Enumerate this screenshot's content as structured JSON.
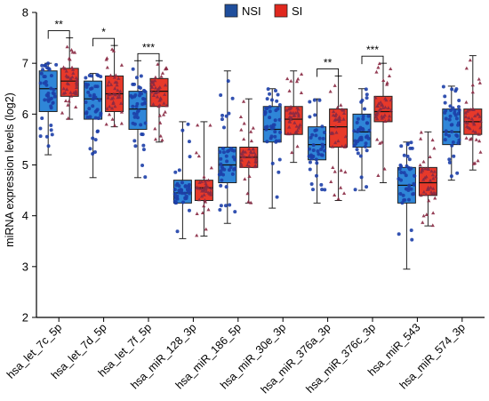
{
  "chart_data": {
    "type": "box",
    "ylabel": "miRNA expression levels (log2)",
    "ylim": [
      2,
      8
    ],
    "yticks": [
      2,
      3,
      4,
      5,
      6,
      7,
      8
    ],
    "legend": {
      "position": "top-center"
    },
    "series": [
      {
        "name": "NSI",
        "color": "#1f4e9c",
        "box_color": "#2f86d8",
        "point_color": "#1d3fa8"
      },
      {
        "name": "SI",
        "color": "#e0281e",
        "box_color": "#e7392a",
        "point_color": "#8a2a44"
      }
    ],
    "categories": [
      "hsa_let_7c_5p",
      "hsa_let_7d_5p",
      "hsa_let_7f_5p",
      "hsa_miR_128_3p",
      "hsa_miR_186_5p",
      "hsa_miR_30e_3p",
      "hsa_miR_376a_3p",
      "hsa_miR_376c_3p",
      "hsa_miR_543",
      "hsa_miR_574_3p"
    ],
    "boxes": [
      {
        "NSI": {
          "min": 5.2,
          "q1": 6.05,
          "median": 6.5,
          "q3": 6.85,
          "max": 7.0
        },
        "SI": {
          "min": 5.9,
          "q1": 6.35,
          "median": 6.65,
          "q3": 6.9,
          "max": 7.5
        }
      },
      {
        "NSI": {
          "min": 4.75,
          "q1": 5.9,
          "median": 6.3,
          "q3": 6.65,
          "max": 6.8
        },
        "SI": {
          "min": 5.75,
          "q1": 6.05,
          "median": 6.4,
          "q3": 6.75,
          "max": 7.35
        }
      },
      {
        "NSI": {
          "min": 4.75,
          "q1": 5.7,
          "median": 6.1,
          "q3": 6.45,
          "max": 7.05
        },
        "SI": {
          "min": 5.45,
          "q1": 6.15,
          "median": 6.45,
          "q3": 6.7,
          "max": 7.05
        }
      },
      {
        "NSI": {
          "min": 3.55,
          "q1": 4.25,
          "median": 4.45,
          "q3": 4.7,
          "max": 5.85
        },
        "SI": {
          "min": 3.6,
          "q1": 4.3,
          "median": 4.55,
          "q3": 4.7,
          "max": 5.85
        }
      },
      {
        "NSI": {
          "min": 3.85,
          "q1": 4.65,
          "median": 5.0,
          "q3": 5.35,
          "max": 6.85
        },
        "SI": {
          "min": 4.25,
          "q1": 4.95,
          "median": 5.15,
          "q3": 5.35,
          "max": 6.3
        }
      },
      {
        "NSI": {
          "min": 4.15,
          "q1": 5.45,
          "median": 5.7,
          "q3": 6.15,
          "max": 6.5
        },
        "SI": {
          "min": 5.05,
          "q1": 5.6,
          "median": 5.9,
          "q3": 6.15,
          "max": 6.85
        }
      },
      {
        "NSI": {
          "min": 4.25,
          "q1": 5.1,
          "median": 5.4,
          "q3": 5.75,
          "max": 6.3
        },
        "SI": {
          "min": 4.3,
          "q1": 5.35,
          "median": 5.75,
          "q3": 6.1,
          "max": 6.75
        }
      },
      {
        "NSI": {
          "min": 4.5,
          "q1": 5.35,
          "median": 5.65,
          "q3": 6.0,
          "max": 6.5
        },
        "SI": {
          "min": 4.65,
          "q1": 5.85,
          "median": 6.05,
          "q3": 6.35,
          "max": 7.0
        }
      },
      {
        "NSI": {
          "min": 2.95,
          "q1": 4.25,
          "median": 4.6,
          "q3": 4.95,
          "max": 5.45
        },
        "SI": {
          "min": 3.8,
          "q1": 4.4,
          "median": 4.65,
          "q3": 4.95,
          "max": 5.65
        }
      },
      {
        "NSI": {
          "min": 4.7,
          "q1": 5.4,
          "median": 5.65,
          "q3": 6.1,
          "max": 6.55
        },
        "SI": {
          "min": 4.9,
          "q1": 5.6,
          "median": 5.85,
          "q3": 6.1,
          "max": 7.15
        }
      }
    ],
    "significance": [
      {
        "category": "hsa_let_7c_5p",
        "label": "**"
      },
      {
        "category": "hsa_let_7d_5p",
        "label": "*"
      },
      {
        "category": "hsa_let_7f_5p",
        "label": "***"
      },
      {
        "category": "hsa_miR_376a_3p",
        "label": "**"
      },
      {
        "category": "hsa_miR_376c_3p",
        "label": "***"
      }
    ]
  }
}
